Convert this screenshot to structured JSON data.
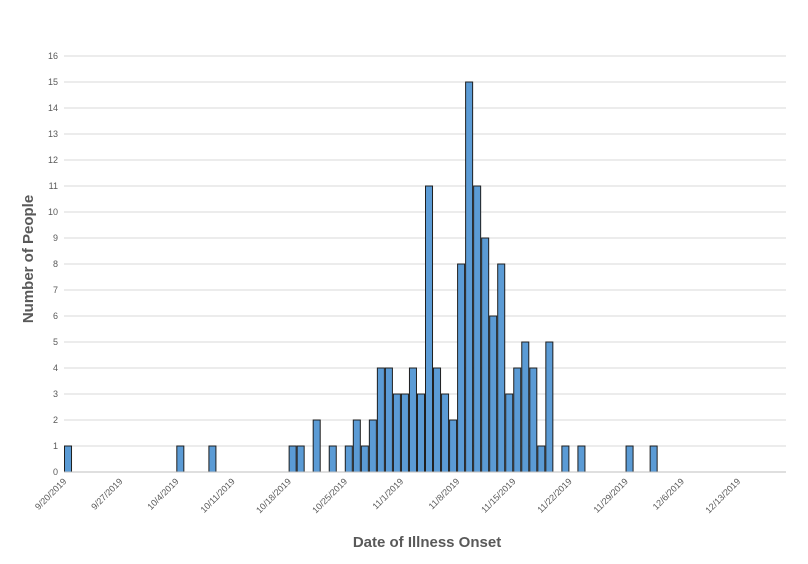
{
  "chart_data": {
    "type": "bar",
    "xlabel": "Date of Illness Onset",
    "ylabel": "Number of People",
    "ylim": [
      0,
      16
    ],
    "y_ticks": [
      0,
      1,
      2,
      3,
      4,
      5,
      6,
      7,
      8,
      9,
      10,
      11,
      12,
      13,
      14,
      15,
      16
    ],
    "x_range": [
      "9/20/2019",
      "12/19/2019"
    ],
    "x_tick_labels": [
      "9/20/2019",
      "9/27/2019",
      "10/4/2019",
      "10/11/2019",
      "10/18/2019",
      "10/25/2019",
      "11/1/2019",
      "11/8/2019",
      "11/15/2019",
      "11/22/2019",
      "11/29/2019",
      "12/6/2019",
      "12/13/2019"
    ],
    "grid": true,
    "bar_color": "#5b9bd5",
    "x": [
      "9/20/2019",
      "10/4/2019",
      "10/8/2019",
      "10/18/2019",
      "10/19/2019",
      "10/21/2019",
      "10/23/2019",
      "10/25/2019",
      "10/26/2019",
      "10/27/2019",
      "10/28/2019",
      "10/29/2019",
      "10/30/2019",
      "10/31/2019",
      "11/1/2019",
      "11/2/2019",
      "11/3/2019",
      "11/4/2019",
      "11/5/2019",
      "11/6/2019",
      "11/7/2019",
      "11/8/2019",
      "11/9/2019",
      "11/10/2019",
      "11/11/2019",
      "11/12/2019",
      "11/13/2019",
      "11/14/2019",
      "11/15/2019",
      "11/16/2019",
      "11/17/2019",
      "11/18/2019",
      "11/19/2019",
      "11/21/2019",
      "11/23/2019",
      "11/29/2019",
      "12/2/2019"
    ],
    "values": [
      1,
      1,
      1,
      1,
      1,
      2,
      1,
      1,
      2,
      1,
      2,
      4,
      4,
      3,
      3,
      4,
      3,
      11,
      4,
      3,
      2,
      8,
      15,
      11,
      9,
      6,
      8,
      3,
      4,
      5,
      4,
      1,
      5,
      1,
      1,
      1,
      1
    ]
  }
}
